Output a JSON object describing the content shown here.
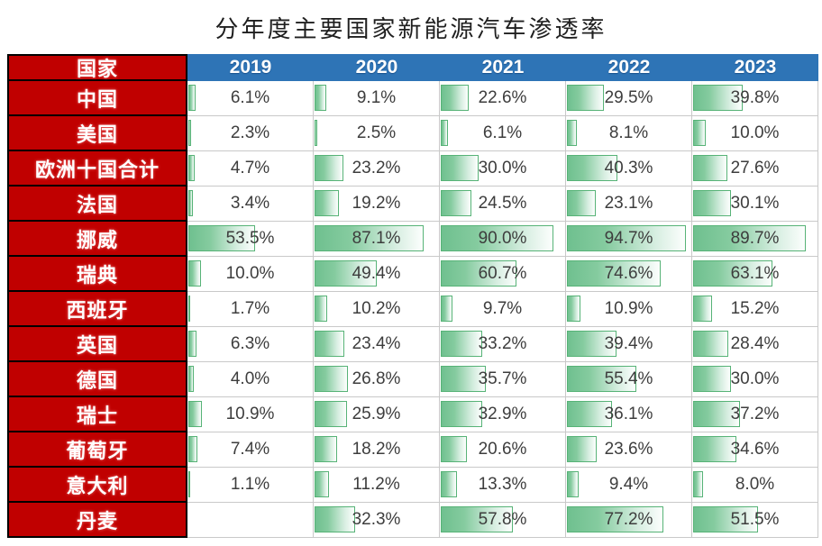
{
  "title": "分年度主要国家新能源汽车渗透率",
  "table": {
    "country_header": "国家"
  },
  "colors": {
    "header_red": "#C00000",
    "header_blue": "#2E74B6",
    "bar_fill": "#6FC08F",
    "bar_border": "#57B377",
    "value_text": "#3D3D3D"
  },
  "chart_data": {
    "type": "table",
    "title": "分年度主要国家新能源汽车渗透率",
    "categories": [
      "2019",
      "2020",
      "2021",
      "2022",
      "2023"
    ],
    "series": [
      {
        "name": "中国",
        "values": [
          6.1,
          9.1,
          22.6,
          29.5,
          39.8
        ]
      },
      {
        "name": "美国",
        "values": [
          2.3,
          2.5,
          6.1,
          8.1,
          10.0
        ]
      },
      {
        "name": "欧洲十国合计",
        "values": [
          4.7,
          23.2,
          30.0,
          40.3,
          27.6
        ]
      },
      {
        "name": "法国",
        "values": [
          3.4,
          19.2,
          24.5,
          23.1,
          30.1
        ]
      },
      {
        "name": "挪威",
        "values": [
          53.5,
          87.1,
          90.0,
          94.7,
          89.7
        ]
      },
      {
        "name": "瑞典",
        "values": [
          10.0,
          49.4,
          60.7,
          74.6,
          63.1
        ]
      },
      {
        "name": "西班牙",
        "values": [
          1.7,
          10.2,
          9.7,
          10.9,
          15.2
        ]
      },
      {
        "name": "英国",
        "values": [
          6.3,
          23.4,
          33.2,
          39.4,
          28.4
        ]
      },
      {
        "name": "德国",
        "values": [
          4.0,
          26.8,
          35.7,
          55.4,
          30.0
        ]
      },
      {
        "name": "瑞士",
        "values": [
          10.9,
          25.9,
          32.9,
          36.1,
          37.2
        ]
      },
      {
        "name": "葡萄牙",
        "values": [
          7.4,
          18.2,
          20.6,
          23.6,
          34.6
        ]
      },
      {
        "name": "意大利",
        "values": [
          1.1,
          11.2,
          13.3,
          9.4,
          8.0
        ]
      },
      {
        "name": "丹麦",
        "values": [
          null,
          32.3,
          57.8,
          77.2,
          51.5
        ]
      }
    ],
    "unit": "%",
    "value_format": "one-decimal-percent",
    "bar_scale": [
      0,
      100
    ],
    "bar_style": "gradient-green-databar"
  }
}
